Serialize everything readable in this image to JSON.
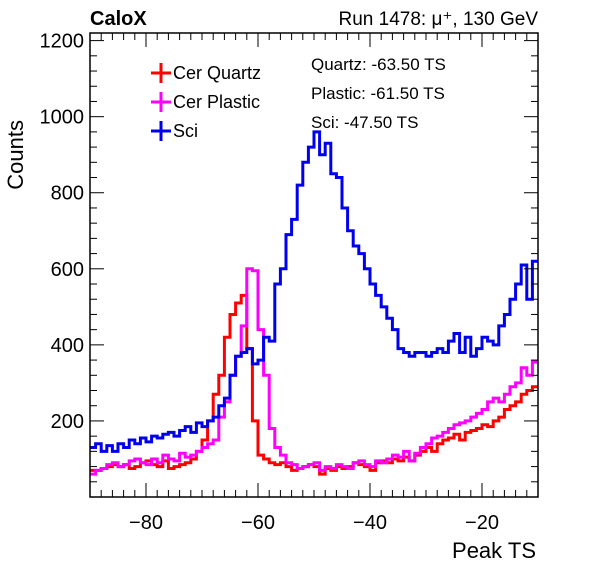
{
  "header": {
    "left_title": "CaloX",
    "right_title": "Run 1478:   μ⁺, 130 GeV"
  },
  "annotations": [
    "Quartz: -63.50 TS",
    "Plastic: -61.50 TS",
    "Sci: -47.50 TS"
  ],
  "colors": {
    "Cer Quartz": "#ff0000",
    "Cer Plastic": "#ff00ff",
    "Sci": "#0000ee"
  },
  "chart_data": {
    "type": "line",
    "step": true,
    "xlabel": "Peak TS",
    "ylabel": "Counts",
    "xlim": [
      -90,
      -10
    ],
    "ylim": [
      0,
      1220
    ],
    "bin_width": 1,
    "x_ticks": [
      -80,
      -60,
      -40,
      -20
    ],
    "y_ticks": [
      200,
      400,
      600,
      800,
      1000,
      1200
    ],
    "legend": [
      "Cer Quartz",
      "Cer Plastic",
      "Sci"
    ],
    "legend_position": "top-left",
    "grid": false,
    "x": [
      -90,
      -89,
      -88,
      -87,
      -86,
      -85,
      -84,
      -83,
      -82,
      -81,
      -80,
      -79,
      -78,
      -77,
      -76,
      -75,
      -74,
      -73,
      -72,
      -71,
      -70,
      -69,
      -68,
      -67,
      -66,
      -65,
      -64,
      -63,
      -62,
      -61,
      -60,
      -59,
      -58,
      -57,
      -56,
      -55,
      -54,
      -53,
      -52,
      -51,
      -50,
      -49,
      -48,
      -47,
      -46,
      -45,
      -44,
      -43,
      -42,
      -41,
      -40,
      -39,
      -38,
      -37,
      -36,
      -35,
      -34,
      -33,
      -32,
      -31,
      -30,
      -29,
      -28,
      -27,
      -26,
      -25,
      -24,
      -23,
      -22,
      -21,
      -20,
      -19,
      -18,
      -17,
      -16,
      -15,
      -14,
      -13,
      -12,
      -11
    ],
    "series": [
      {
        "name": "Cer Quartz",
        "values": [
          70,
          70,
          75,
          80,
          85,
          80,
          85,
          75,
          80,
          90,
          95,
          85,
          80,
          95,
          75,
          80,
          85,
          90,
          100,
          120,
          150,
          200,
          270,
          320,
          420,
          480,
          510,
          530,
          390,
          200,
          110,
          100,
          90,
          85,
          90,
          80,
          70,
          75,
          80,
          85,
          80,
          60,
          75,
          70,
          80,
          75,
          80,
          90,
          85,
          80,
          70,
          90,
          95,
          90,
          100,
          95,
          105,
          95,
          110,
          120,
          130,
          120,
          140,
          150,
          155,
          165,
          150,
          170,
          175,
          180,
          190,
          185,
          200,
          210,
          230,
          240,
          250,
          270,
          280,
          290
        ]
      },
      {
        "name": "Cer Plastic",
        "values": [
          60,
          70,
          75,
          85,
          90,
          80,
          85,
          95,
          100,
          90,
          85,
          100,
          90,
          110,
          100,
          95,
          115,
          105,
          110,
          120,
          130,
          140,
          150,
          210,
          250,
          320,
          370,
          450,
          600,
          595,
          440,
          320,
          180,
          130,
          110,
          90,
          85,
          75,
          80,
          85,
          90,
          70,
          80,
          75,
          85,
          80,
          75,
          90,
          95,
          85,
          80,
          95,
          90,
          100,
          110,
          105,
          120,
          95,
          115,
          130,
          140,
          155,
          160,
          170,
          180,
          190,
          195,
          200,
          210,
          220,
          230,
          250,
          260,
          250,
          270,
          290,
          300,
          340,
          320,
          355
        ]
      },
      {
        "name": "Sci",
        "values": [
          130,
          140,
          120,
          135,
          120,
          140,
          130,
          150,
          140,
          155,
          145,
          160,
          155,
          165,
          170,
          160,
          175,
          185,
          170,
          195,
          185,
          200,
          210,
          240,
          260,
          320,
          370,
          380,
          390,
          350,
          360,
          420,
          410,
          560,
          600,
          690,
          730,
          820,
          880,
          920,
          960,
          900,
          930,
          850,
          840,
          760,
          700,
          660,
          640,
          600,
          560,
          530,
          500,
          470,
          440,
          390,
          380,
          370,
          380,
          380,
          370,
          380,
          390,
          380,
          410,
          430,
          380,
          420,
          370,
          390,
          420,
          410,
          400,
          450,
          480,
          520,
          560,
          610,
          520,
          620
        ]
      }
    ]
  }
}
